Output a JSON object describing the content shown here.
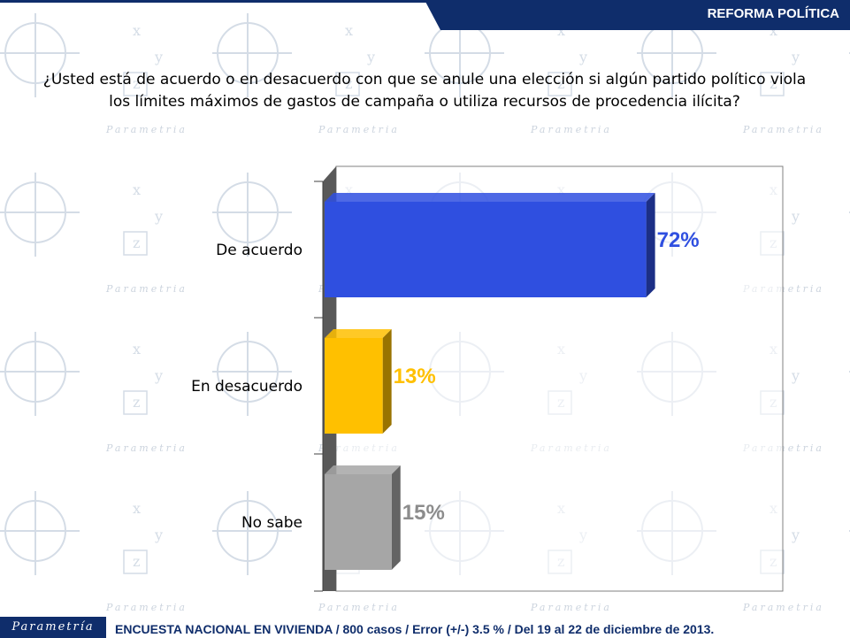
{
  "header": {
    "section_title": "REFORMA POLÍTICA"
  },
  "question": {
    "line1": "¿Usted está de acuerdo o en desacuerdo con que se anule una elección si algún partido político viola",
    "line2": "los límites máximos de gastos de campaña o utiliza recursos de procedencia ilícita?"
  },
  "chart_data": {
    "type": "bar",
    "orientation": "horizontal",
    "categories": [
      "De acuerdo",
      "En desacuerdo",
      "No sabe"
    ],
    "values": [
      72,
      13,
      15
    ],
    "value_labels": [
      "72%",
      "13%",
      "15%"
    ],
    "colors": [
      "#2f4fe0",
      "#ffc000",
      "#a6a6a6"
    ],
    "label_colors": [
      "#2f4fe0",
      "#ffc000",
      "#8c8c8c"
    ],
    "xlim": [
      0,
      100
    ],
    "grid": false,
    "legend": "none",
    "three_d": true
  },
  "watermark": {
    "brand": "Parametría"
  },
  "footer": {
    "logo": "Parametría",
    "text": "ENCUESTA NACIONAL EN VIVIENDA / 800 casos / Error (+/-) 3.5 % / Del 19 al 22 de diciembre de 2013."
  }
}
